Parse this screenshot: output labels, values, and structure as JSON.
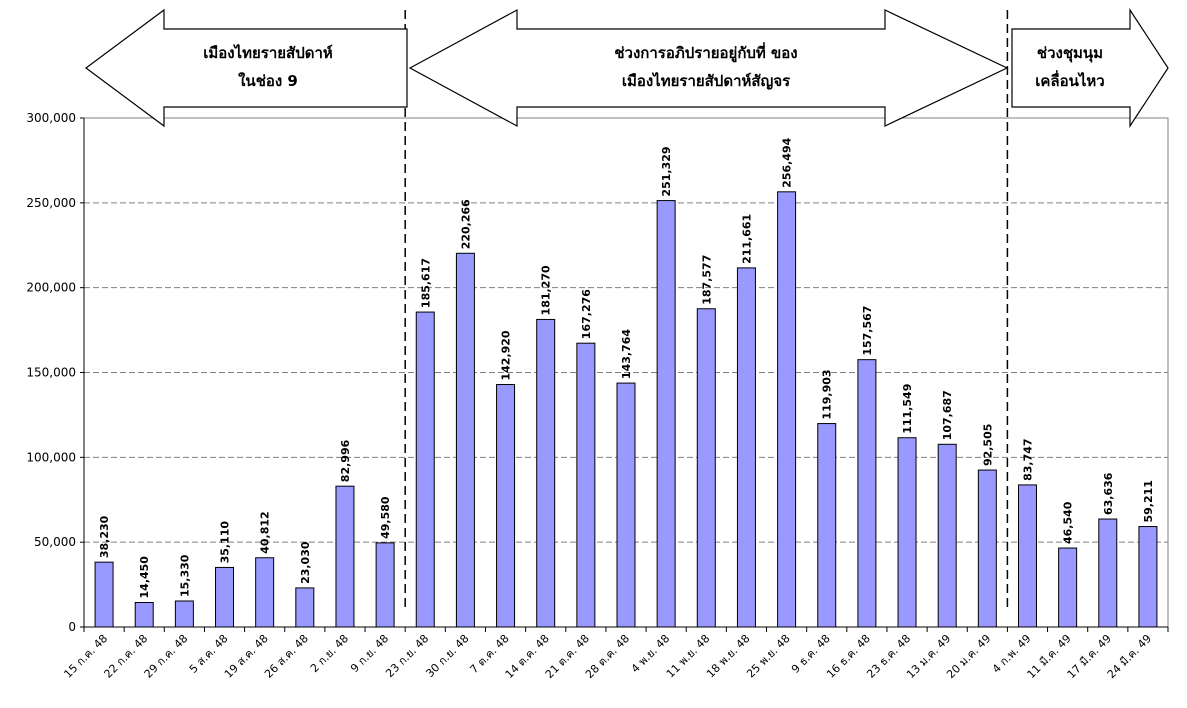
{
  "chart_data": {
    "type": "bar",
    "title": "",
    "xlabel": "",
    "ylabel": "",
    "ylim": [
      0,
      300000
    ],
    "yticks": [
      "0",
      "50,000",
      "100,000",
      "150,000",
      "200,000",
      "250,000",
      "300,000"
    ],
    "grid": true,
    "bar_color": "#9999ff",
    "categories": [
      "15 ก.ค. 48",
      "22 ก.ค. 48",
      "29 ก.ค. 48",
      "5 ส.ค. 48",
      "19 ส.ค. 48",
      "26 ส.ค. 48",
      "2 ก.ย. 48",
      "9 ก.ย. 48",
      "23 ก.ย. 48",
      "30 ก.ย. 48",
      "7 ต.ค. 48",
      "14 ต.ค. 48",
      "21 ต.ค. 48",
      "28 ต.ค. 48",
      "4 พ.ย. 48",
      "11 พ.ย. 48",
      "18 พ.ย. 48",
      "25 พ.ย. 48",
      "9 ธ.ค. 48",
      "16 ธ.ค. 48",
      "23 ธ.ค. 48",
      "13 ม.ค. 49",
      "20 ม.ค. 49",
      "4 ก.พ. 49",
      "11 มี.ค. 49",
      "17 มี.ค. 49",
      "24 มี.ค. 49"
    ],
    "values": [
      38230,
      14450,
      15330,
      35110,
      40812,
      23030,
      82996,
      49580,
      185617,
      220266,
      142920,
      181270,
      167276,
      143764,
      251329,
      187577,
      211661,
      256494,
      119903,
      157567,
      111549,
      107687,
      92505,
      83747,
      46540,
      63636,
      59211
    ],
    "value_labels": [
      "38,230",
      "14,450",
      "15,330",
      "35,110",
      "40,812",
      "23,030",
      "82,996",
      "49,580",
      "185,617",
      "220,266",
      "142,920",
      "181,270",
      "167,276",
      "143,764",
      "251,329",
      "187,577",
      "211,661",
      "256,494",
      "119,903",
      "157,567",
      "111,549",
      "107,687",
      "92,505",
      "83,747",
      "46,540",
      "63,636",
      "59,211"
    ],
    "annotations": [
      {
        "lines": [
          "เมืองไทยรายสัปดาห์",
          "ในช่อง 9"
        ],
        "from_category": 0,
        "to_category": 7
      },
      {
        "lines": [
          "ช่วงการอภิปรายอยู่กับที่ ของ",
          "เมืองไทยรายสัปดาห์สัญจร"
        ],
        "from_category": 8,
        "to_category": 22
      },
      {
        "lines": [
          "ช่วงชุมนุม",
          "เคลื่อนไหว"
        ],
        "from_category": 23,
        "to_category": 26
      }
    ]
  }
}
